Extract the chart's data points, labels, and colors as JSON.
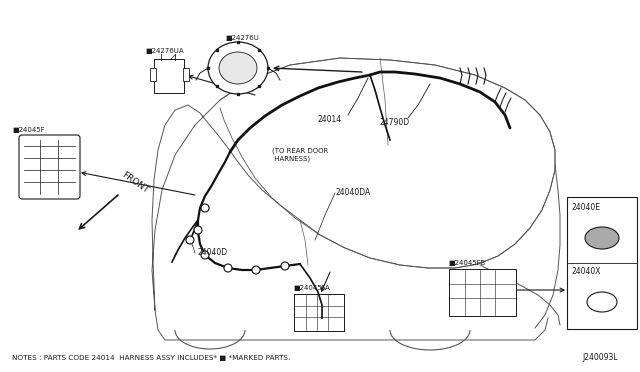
{
  "bg_color": "#ffffff",
  "line_color": "#1a1a1a",
  "fig_width": 6.4,
  "fig_height": 3.72,
  "notes_text": "NOTES : PARTS CODE 24014  HARNESS ASSY INCLUDES* ■ *MARKED PARTS.",
  "diagram_id": "J240093L",
  "car_color": "#555555",
  "harness_color": "#111111",
  "label_24276UA": "■24276UA",
  "label_24276U": "■24276U",
  "label_24045F": "■24045F",
  "label_24790": "24790D",
  "label_24014": "24014",
  "label_24040DA": "24040DA",
  "label_24040D": "24040D",
  "label_24045FA": "■24045FA",
  "label_24045FB": "■24045FB",
  "label_24040E": "24040E",
  "label_24040X": "24040X",
  "annotation_to_rear": "(TO REAR DOOR\n HARNESS)",
  "label_front": "FRONT"
}
